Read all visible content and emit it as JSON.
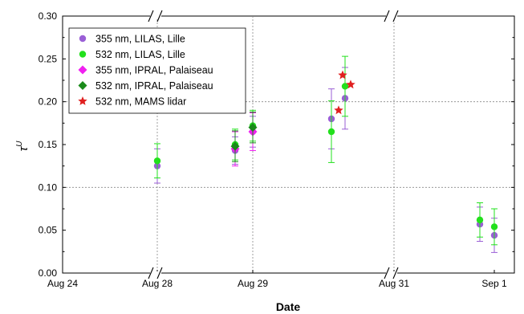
{
  "chart_data": {
    "type": "scatter",
    "xlabel": "Date",
    "ylabel": "τ",
    "ylabel_superscript": "U",
    "x_ticks": [
      "Aug 24",
      "Aug 28",
      "Aug 29",
      "Aug 31",
      "Sep 1"
    ],
    "x_axis_note": "broken axis with breaks after Aug 24 and after Aug 29",
    "ylim": [
      0.0,
      0.3
    ],
    "y_ticks": [
      "0.00",
      "0.05",
      "0.10",
      "0.15",
      "0.20",
      "0.25",
      "0.30"
    ],
    "grid": "dotted at Aug 28, Aug 29, Aug 31 and y = 0.10, 0.20",
    "legend_position": "top-left",
    "series": [
      {
        "name": "355 nm, LILAS, Lille",
        "marker": "circle",
        "color": "#9a5fd6",
        "points": [
          {
            "x": "Aug 28",
            "y": 0.125,
            "err": 0.02
          },
          {
            "x": "Aug 29 (early)",
            "y": 0.143,
            "err": 0.016
          },
          {
            "x": "Aug 29",
            "y": 0.165,
            "err": 0.018
          },
          {
            "x": "Aug 30 (early)",
            "y": 0.18,
            "err": 0.035
          },
          {
            "x": "Aug 30",
            "y": 0.204,
            "err": 0.036
          },
          {
            "x": "Sep 1 (early)",
            "y": 0.057,
            "err": 0.02
          },
          {
            "x": "Sep 1",
            "y": 0.044,
            "err": 0.02
          }
        ]
      },
      {
        "name": "532 nm, LILAS, Lille",
        "marker": "circle",
        "color": "#22e01c",
        "points": [
          {
            "x": "Aug 28",
            "y": 0.131,
            "err": 0.02
          },
          {
            "x": "Aug 29 (early)",
            "y": 0.15,
            "err": 0.018
          },
          {
            "x": "Aug 29",
            "y": 0.172,
            "err": 0.018
          },
          {
            "x": "Aug 30 (early)",
            "y": 0.165,
            "err": 0.036
          },
          {
            "x": "Aug 30",
            "y": 0.218,
            "err": 0.035
          },
          {
            "x": "Sep 1 (early)",
            "y": 0.062,
            "err": 0.02
          },
          {
            "x": "Sep 1",
            "y": 0.054,
            "err": 0.021
          }
        ]
      },
      {
        "name": "355 nm, IPRAL, Palaiseau",
        "marker": "diamond",
        "color": "#f020f0",
        "points": [
          {
            "x": "Aug 29 (early)",
            "y": 0.145,
            "err": 0.02
          },
          {
            "x": "Aug 29",
            "y": 0.165,
            "err": 0.022
          }
        ]
      },
      {
        "name": "532 nm, IPRAL, Palaiseau",
        "marker": "diamond",
        "color": "#1a8a1a",
        "points": [
          {
            "x": "Aug 29 (early)",
            "y": 0.148,
            "err": 0.018
          },
          {
            "x": "Aug 29",
            "y": 0.17,
            "err": 0.018
          }
        ]
      },
      {
        "name": "532 nm, MAMS lidar",
        "marker": "star",
        "color": "#e02020",
        "points": [
          {
            "x": "Aug 30 (early)",
            "y": 0.19
          },
          {
            "x": "Aug 30",
            "y": 0.231
          },
          {
            "x": "Aug 30 (late)",
            "y": 0.22
          }
        ]
      }
    ]
  }
}
